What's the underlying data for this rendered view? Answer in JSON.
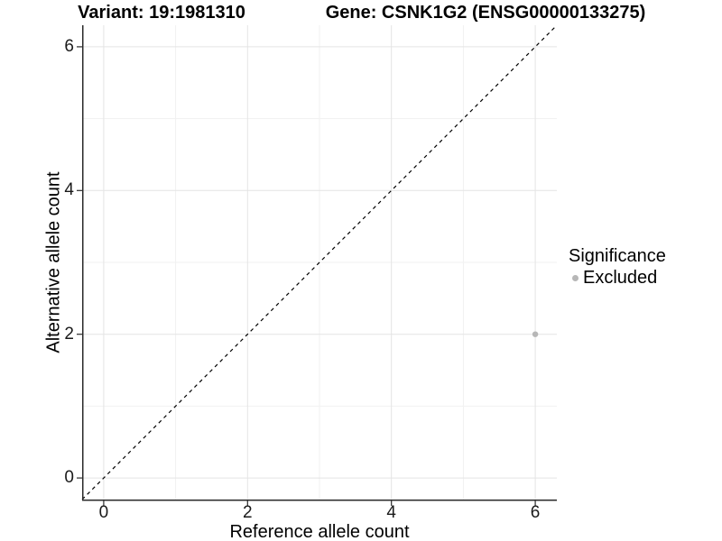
{
  "titles": {
    "variant": "Variant: 19:1981310",
    "gene": "Gene: CSNK1G2 (ENSG00000133275)"
  },
  "axes": {
    "x_label": "Reference allele count",
    "y_label": "Alternative allele count",
    "x_tick_labels": [
      "0",
      "2",
      "4",
      "6"
    ],
    "y_tick_labels": [
      "0",
      "2",
      "4",
      "6"
    ]
  },
  "legend": {
    "title": "Significance",
    "items": [
      {
        "label": "Excluded",
        "color": "#b7b7b7"
      }
    ]
  },
  "colors": {
    "background": "#ffffff",
    "grid_major": "#e4e4e4",
    "grid_minor": "#f1f1f1",
    "axis_line": "#2a2a2a",
    "tick_mark": "#2a2a2a",
    "reference_line": "#000000",
    "point": "#b7b7b7",
    "text": "#000000"
  },
  "chart_data": {
    "type": "scatter",
    "title": "Variant: 19:1981310 | Gene: CSNK1G2 (ENSG00000133275)",
    "xlabel": "Reference allele count",
    "ylabel": "Alternative allele count",
    "xlim": [
      -0.3,
      6.3
    ],
    "ylim": [
      -0.3,
      6.3
    ],
    "x_major_ticks": [
      0,
      2,
      4,
      6
    ],
    "y_major_ticks": [
      0,
      2,
      4,
      6
    ],
    "x_minor_ticks": [
      1,
      3,
      5
    ],
    "y_minor_ticks": [
      1,
      3,
      5
    ],
    "grid": "major and minor, light gray on white",
    "legend_position": "right",
    "legend_title": "Significance",
    "series": [
      {
        "name": "Excluded",
        "color": "#b7b7b7",
        "points": [
          {
            "x": 6,
            "y": 2
          }
        ]
      }
    ],
    "reference_line": {
      "description": "identity line y = x",
      "style": "dashed",
      "color": "#000000",
      "from": [
        -0.3,
        -0.3
      ],
      "to": [
        6.3,
        6.3
      ]
    }
  }
}
